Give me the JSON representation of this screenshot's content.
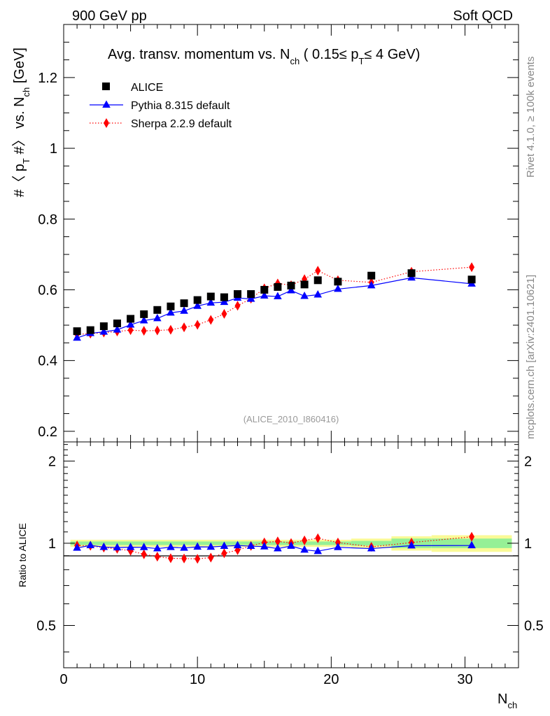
{
  "header": {
    "left": "900 GeV pp",
    "right": "Soft QCD"
  },
  "side_text": {
    "rivet": "Rivet 4.1.0, ≥ 100k events",
    "mcplots": "mcplots.cern.ch [arXiv:2401.10621]"
  },
  "colors": {
    "alice": "#000000",
    "pythia": "#0000ff",
    "sherpa": "#ff0000",
    "band_inner": "#96f096",
    "band_outer": "#fafa96"
  },
  "chart_data": [
    {
      "type": "scatter",
      "title": {
        "main": "Avg. transv. momentum vs. N",
        "sub1": "ch",
        "mid": " ( 0.15≤ p",
        "sub2": "T",
        "end": "≤ 4 GeV)"
      },
      "ylabel": {
        "pre": "#〈 p",
        "sub1": "T",
        "mid": " #〉 vs. N",
        "sub2": "ch",
        "end": " [GeV]"
      },
      "watermark": "(ALICE_2010_I860416)",
      "xlim": [
        0,
        34
      ],
      "ylim": [
        0.17,
        1.35
      ],
      "yticks": [
        0.2,
        0.4,
        0.6,
        0.8,
        1.0,
        1.2
      ],
      "ytick_labels": [
        "0.2",
        "0.4",
        "0.6",
        "0.8",
        "1",
        "1.2"
      ],
      "legend": [
        "ALICE",
        "Pythia 8.315 default",
        "Sherpa 2.2.9 default"
      ],
      "series": [
        {
          "name": "ALICE",
          "marker": "square",
          "x": [
            1,
            2,
            3,
            4,
            5,
            6,
            7,
            8,
            9,
            10,
            11,
            12,
            13,
            14,
            15,
            16,
            17,
            18,
            19,
            20.5,
            23,
            26,
            30.5
          ],
          "y": [
            0.483,
            0.486,
            0.497,
            0.505,
            0.518,
            0.531,
            0.543,
            0.553,
            0.562,
            0.571,
            0.581,
            0.579,
            0.588,
            0.588,
            0.6,
            0.608,
            0.612,
            0.615,
            0.627,
            0.623,
            0.64,
            0.647,
            0.629
          ]
        },
        {
          "name": "Pythia 8.315 default",
          "marker": "triangle",
          "line": "solid",
          "x": [
            1,
            2,
            3,
            4,
            5,
            6,
            7,
            8,
            9,
            10,
            11,
            12,
            13,
            14,
            15,
            16,
            17,
            18,
            19,
            20.5,
            23,
            26,
            30.5
          ],
          "y": [
            0.464,
            0.477,
            0.481,
            0.487,
            0.501,
            0.513,
            0.519,
            0.535,
            0.54,
            0.554,
            0.563,
            0.565,
            0.577,
            0.574,
            0.583,
            0.581,
            0.598,
            0.582,
            0.586,
            0.602,
            0.612,
            0.634,
            0.617
          ]
        },
        {
          "name": "Sherpa 2.2.9 default",
          "marker": "diamond",
          "line": "dotted",
          "x": [
            1,
            2,
            3,
            4,
            5,
            6,
            7,
            8,
            9,
            10,
            11,
            12,
            13,
            14,
            15,
            16,
            17,
            18,
            19,
            20.5,
            23,
            26,
            30.5
          ],
          "y": [
            0.474,
            0.476,
            0.479,
            0.482,
            0.486,
            0.484,
            0.485,
            0.487,
            0.494,
            0.501,
            0.515,
            0.532,
            0.555,
            0.575,
            0.604,
            0.618,
            0.613,
            0.63,
            0.654,
            0.627,
            0.621,
            0.651,
            0.664
          ]
        }
      ]
    },
    {
      "type": "scatter",
      "ylabel": "Ratio to ALICE",
      "xlabel": {
        "main": "N",
        "sub": "ch"
      },
      "xlim": [
        0,
        34
      ],
      "ylim": [
        0.35,
        2.35
      ],
      "xticks": [
        0,
        10,
        20,
        30
      ],
      "xtick_labels": [
        "0",
        "10",
        "20",
        "30"
      ],
      "yticks": [
        0.5,
        1,
        2
      ],
      "ytick_labels": [
        "0.5",
        "1",
        "2"
      ],
      "band_bins": [
        {
          "x0": 0.5,
          "x1": 21.5,
          "inner": 0.015,
          "outer": 0.03
        },
        {
          "x0": 21.5,
          "x1": 24.5,
          "inner": 0.02,
          "outer": 0.04
        },
        {
          "x0": 24.5,
          "x1": 27.5,
          "inner": 0.04,
          "outer": 0.06
        },
        {
          "x0": 27.5,
          "x1": 33.5,
          "inner": 0.04,
          "outer": 0.07
        }
      ],
      "series": [
        {
          "name": "Pythia 8.315 default",
          "marker": "triangle",
          "line": "solid",
          "x": [
            1,
            2,
            3,
            4,
            5,
            6,
            7,
            8,
            9,
            10,
            11,
            12,
            13,
            14,
            15,
            16,
            17,
            18,
            19,
            20.5,
            23,
            26,
            30.5
          ],
          "y": [
            0.961,
            0.982,
            0.968,
            0.964,
            0.967,
            0.966,
            0.956,
            0.967,
            0.961,
            0.97,
            0.969,
            0.976,
            0.981,
            0.976,
            0.972,
            0.956,
            0.977,
            0.946,
            0.935,
            0.966,
            0.956,
            0.98,
            0.981
          ]
        },
        {
          "name": "Sherpa 2.2.9 default",
          "marker": "diamond",
          "line": "dotted",
          "x": [
            1,
            2,
            3,
            4,
            5,
            6,
            7,
            8,
            9,
            10,
            11,
            12,
            13,
            14,
            15,
            16,
            17,
            18,
            19,
            20.5,
            23,
            26,
            30.5
          ],
          "y": [
            0.981,
            0.979,
            0.964,
            0.954,
            0.938,
            0.911,
            0.893,
            0.881,
            0.879,
            0.877,
            0.886,
            0.919,
            0.944,
            0.978,
            1.007,
            1.016,
            1.002,
            1.024,
            1.043,
            1.006,
            0.97,
            1.006,
            1.056
          ]
        }
      ]
    }
  ]
}
